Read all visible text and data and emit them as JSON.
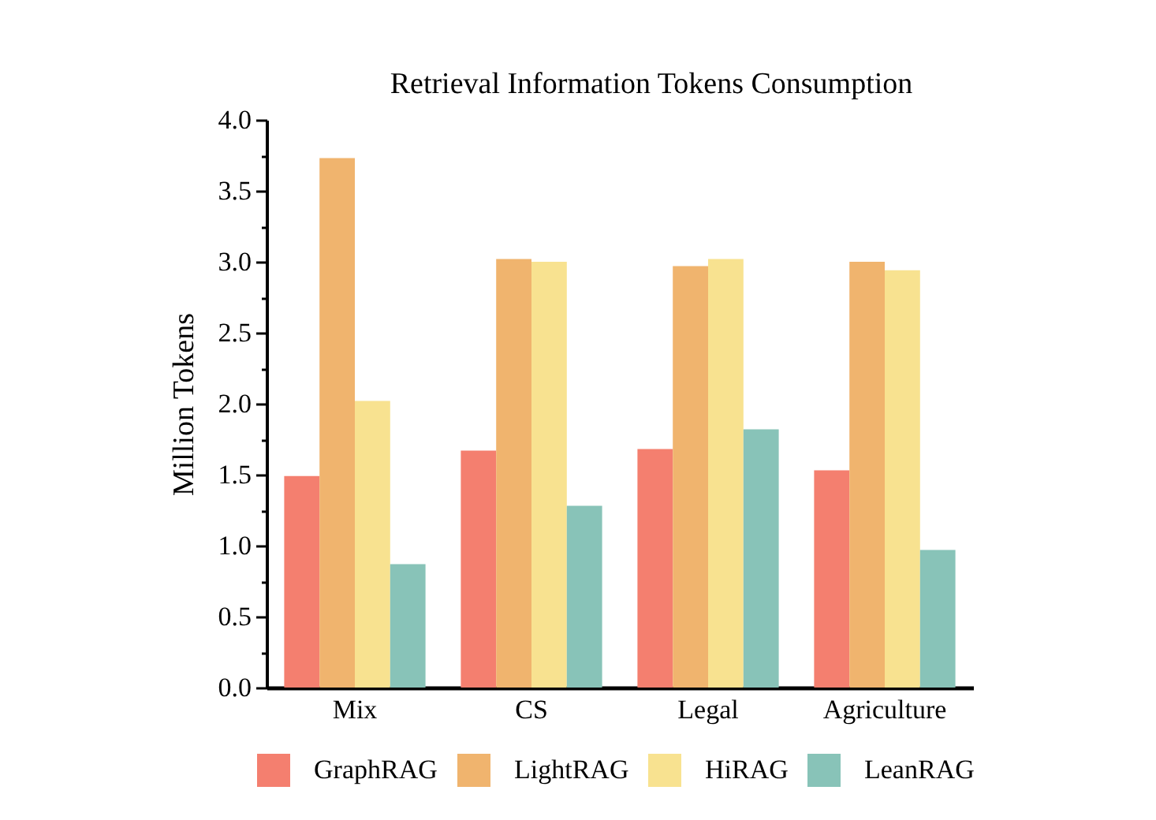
{
  "chart_data": {
    "type": "bar",
    "title": "Retrieval Information Tokens Consumption",
    "ylabel": "Million Tokens",
    "categories": [
      "Mix",
      "CS",
      "Legal",
      "Agriculture"
    ],
    "series": [
      {
        "name": "GraphRAG",
        "color": "#f47f6f",
        "values": [
          1.49,
          1.67,
          1.68,
          1.53
        ]
      },
      {
        "name": "LightRAG",
        "color": "#f0b46e",
        "values": [
          3.73,
          3.02,
          2.97,
          3.0
        ]
      },
      {
        "name": "HiRAG",
        "color": "#f8e290",
        "values": [
          2.02,
          3.0,
          3.02,
          2.94
        ]
      },
      {
        "name": "LeanRAG",
        "color": "#88c3b8",
        "values": [
          0.87,
          1.28,
          1.82,
          0.97
        ]
      }
    ],
    "ylim": [
      0,
      4
    ],
    "yticks": [
      {
        "value": 0,
        "label": "0.0"
      },
      {
        "value": 0.25,
        "label": null
      },
      {
        "value": 0.5,
        "label": "0.5"
      },
      {
        "value": 0.75,
        "label": null
      },
      {
        "value": 1,
        "label": "1.0"
      },
      {
        "value": 1.25,
        "label": null
      },
      {
        "value": 1.5,
        "label": "1.5"
      },
      {
        "value": 1.75,
        "label": null
      },
      {
        "value": 2,
        "label": "2.0"
      },
      {
        "value": 2.25,
        "label": null
      },
      {
        "value": 2.5,
        "label": "2.5"
      },
      {
        "value": 2.75,
        "label": null
      },
      {
        "value": 3,
        "label": "3.0"
      },
      {
        "value": 3.25,
        "label": null
      },
      {
        "value": 3.5,
        "label": "3.5"
      },
      {
        "value": 3.75,
        "label": null
      },
      {
        "value": 4,
        "label": "4.0"
      }
    ],
    "legend": "bottom"
  }
}
